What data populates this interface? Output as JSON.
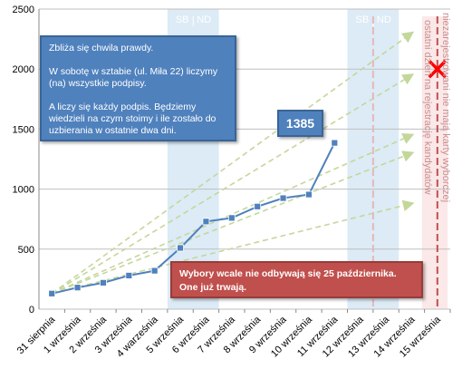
{
  "chart_data": {
    "type": "line",
    "categories": [
      "31 sierpnia",
      "1 września",
      "2 września",
      "3 września",
      "4 warześnia",
      "5 września",
      "6 września",
      "7 września",
      "8 września",
      "9 września",
      "10 września",
      "11 września",
      "12 września",
      "13 września",
      "14 września",
      "15 września"
    ],
    "series": [
      {
        "values": [
          130,
          180,
          220,
          280,
          320,
          510,
          730,
          760,
          855,
          925,
          955,
          1385,
          null,
          null,
          null,
          null
        ],
        "color": "#4f81bd"
      }
    ],
    "trend_lines": [
      {
        "from": [
          0,
          130
        ],
        "to": [
          14,
          2300
        ]
      },
      {
        "from": [
          0,
          130
        ],
        "to": [
          14,
          1950
        ]
      },
      {
        "from": [
          0,
          130
        ],
        "to": [
          14,
          1450
        ]
      },
      {
        "from": [
          0,
          130
        ],
        "to": [
          14,
          1300
        ]
      },
      {
        "from": [
          0,
          130
        ],
        "to": [
          14,
          880
        ]
      }
    ],
    "ylim": [
      0,
      2500
    ],
    "yticks": [
      0,
      500,
      1000,
      1500,
      2000,
      2500
    ],
    "grid": true,
    "weekend_bands": [
      {
        "at": 5.5,
        "labels": [
          "SB",
          "ND"
        ]
      },
      {
        "at": 12.5,
        "labels": [
          "SB",
          "ND"
        ]
      }
    ],
    "deadline": {
      "x": 15,
      "label": "niezarejestrowani nie mają karty wyborczej",
      "marker_y": 2000
    },
    "registration_end": {
      "x": 12.5,
      "label": "ostatni dzień na rejestrację kandydatów"
    },
    "callout_value": "1385",
    "colors": {
      "series": "#4f81bd",
      "trend": "#c4d79b",
      "weekend": "#dcebf6",
      "deadline": "#c0504d",
      "registration": "#e6b8b7",
      "marker": "#ff0000",
      "grid": "#bfbfbf"
    }
  },
  "annotations": {
    "blue_box": {
      "line1": "Zbliża się chwila prawdy.",
      "line2": "W sobotę w sztabie (ul. Miła 22) liczymy (na) wszystkie podpisy.",
      "line3": "A liczy się każdy podpis. Będziemy wiedzieli na czym stoimy i ile zostało do uzbierania w ostatnie dwa dni."
    },
    "red_box": "Wybory wcale nie odbywają się 25 października.\nOne już trwają."
  }
}
